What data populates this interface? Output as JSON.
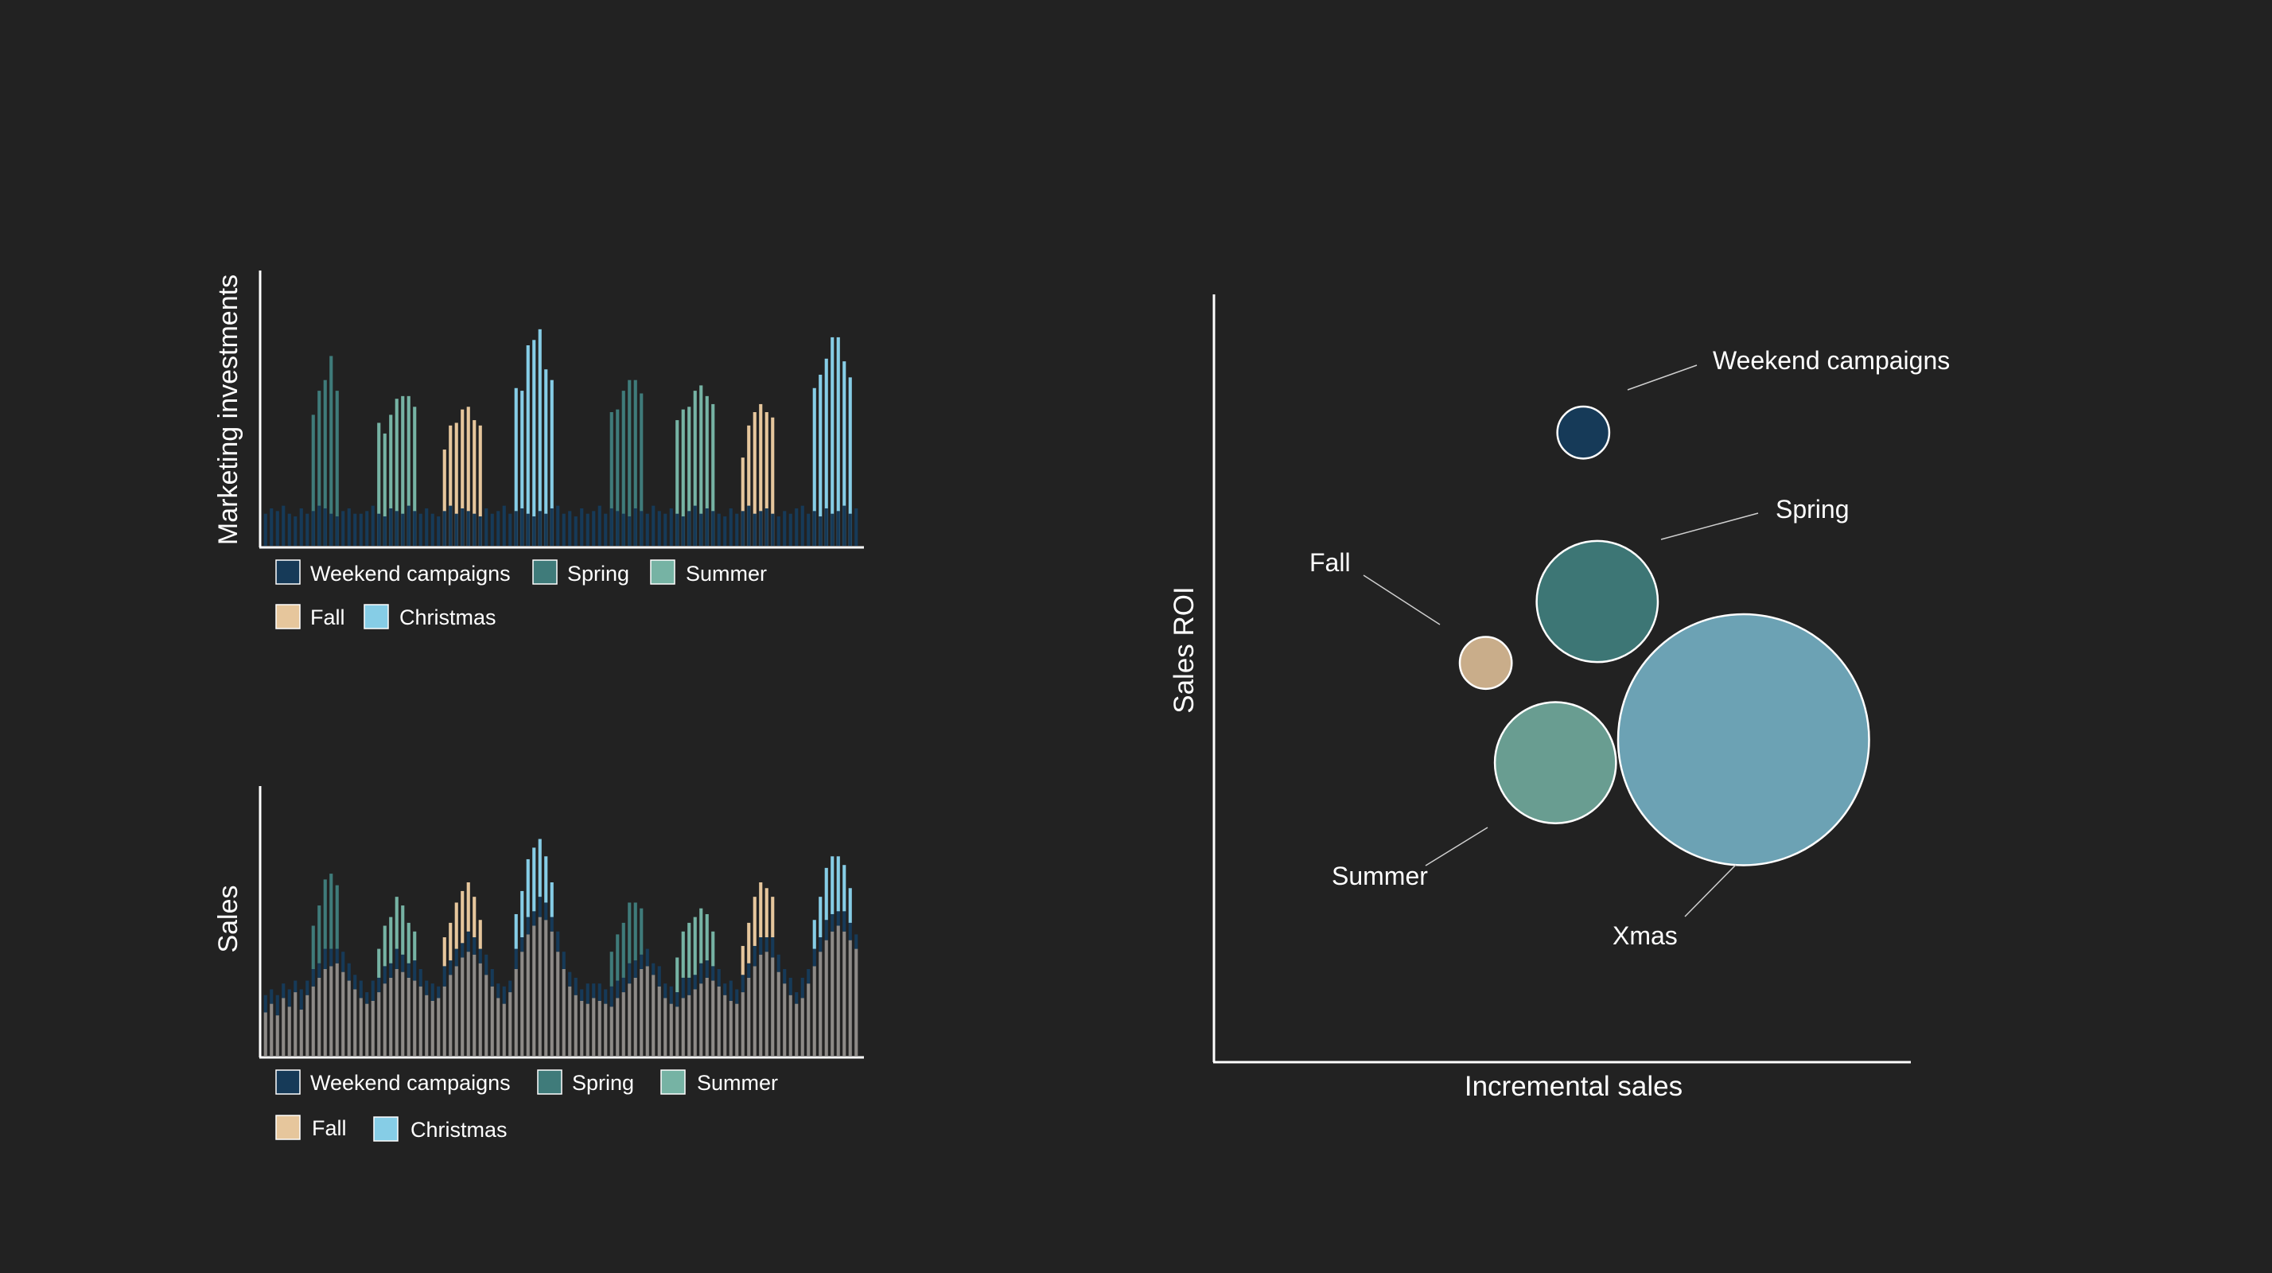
{
  "colors": {
    "background": "#222222",
    "weekend": "#163a58",
    "spring": "#3f7b7a",
    "summer": "#76b3a4",
    "fall": "#e6c69c",
    "christmas": "#86cde6",
    "gray": "#8d8a87",
    "axis": "#ffffff"
  },
  "legend_labels": {
    "weekend": "Weekend campaigns",
    "spring": "Spring",
    "summer": "Summer",
    "fall": "Fall",
    "christmas": "Christmas"
  },
  "chart_data": [
    {
      "type": "bar",
      "ylabel": "Marketing investments",
      "xlabel": "",
      "legend": [
        "Weekend campaigns",
        "Spring",
        "Summer",
        "Fall",
        "Christmas"
      ],
      "legend_placement": "bottom",
      "bar_count": 100,
      "weekend_values": [
        0.12,
        0.14,
        0.13,
        0.15,
        0.12,
        0.11,
        0.14,
        0.12,
        0.13,
        0.15,
        0.14,
        0.12,
        0.11,
        0.13,
        0.14,
        0.12,
        0.12,
        0.13,
        0.15,
        0.12,
        0.11,
        0.14,
        0.13,
        0.12,
        0.15,
        0.13,
        0.12,
        0.14,
        0.12,
        0.11,
        0.13,
        0.15,
        0.12,
        0.14,
        0.13,
        0.12,
        0.11,
        0.14,
        0.12,
        0.13,
        0.15,
        0.12,
        0.13,
        0.14,
        0.12,
        0.11,
        0.13,
        0.12,
        0.14,
        0.15,
        0.12,
        0.13,
        0.11,
        0.14,
        0.12,
        0.13,
        0.15,
        0.12,
        0.14,
        0.13,
        0.12,
        0.11,
        0.14,
        0.13,
        0.12,
        0.15,
        0.13,
        0.12,
        0.14,
        0.12,
        0.11,
        0.13,
        0.15,
        0.12,
        0.14,
        0.13,
        0.12,
        0.11,
        0.14,
        0.12,
        0.13,
        0.15,
        0.12,
        0.13,
        0.14,
        0.12,
        0.11,
        0.13,
        0.12,
        0.14,
        0.15,
        0.12,
        0.13,
        0.11,
        0.14,
        0.12,
        0.13,
        0.15,
        0.12,
        0.14
      ],
      "campaigns": [
        {
          "series": "Spring",
          "start": 8,
          "values": [
            0.49,
            0.58,
            0.62,
            0.71,
            0.58
          ]
        },
        {
          "series": "Summer",
          "start": 19,
          "values": [
            0.46,
            0.42,
            0.49,
            0.55,
            0.56,
            0.56,
            0.52
          ]
        },
        {
          "series": "Fall",
          "start": 30,
          "values": [
            0.36,
            0.45,
            0.46,
            0.51,
            0.52,
            0.47,
            0.45
          ]
        },
        {
          "series": "Christmas",
          "start": 42,
          "values": [
            0.59,
            0.58,
            0.75,
            0.77,
            0.81,
            0.66,
            0.62
          ]
        },
        {
          "series": "Spring",
          "start": 58,
          "values": [
            0.5,
            0.51,
            0.58,
            0.62,
            0.62,
            0.57
          ]
        },
        {
          "series": "Summer",
          "start": 69,
          "values": [
            0.47,
            0.51,
            0.52,
            0.58,
            0.6,
            0.56,
            0.53
          ]
        },
        {
          "series": "Fall",
          "start": 80,
          "values": [
            0.33,
            0.45,
            0.5,
            0.53,
            0.5,
            0.48
          ]
        },
        {
          "series": "Christmas",
          "start": 92,
          "values": [
            0.59,
            0.64,
            0.7,
            0.78,
            0.78,
            0.69,
            0.63
          ]
        }
      ]
    },
    {
      "type": "bar",
      "ylabel": "Sales",
      "xlabel": "",
      "legend": [
        "Weekend campaigns",
        "Spring",
        "Summer",
        "Fall",
        "Christmas"
      ],
      "legend_placement": "bottom",
      "bar_count": 100,
      "base_values": [
        0.15,
        0.18,
        0.14,
        0.2,
        0.17,
        0.22,
        0.16,
        0.21,
        0.24,
        0.27,
        0.3,
        0.31,
        0.32,
        0.29,
        0.26,
        0.23,
        0.2,
        0.18,
        0.19,
        0.22,
        0.25,
        0.27,
        0.3,
        0.29,
        0.27,
        0.26,
        0.24,
        0.21,
        0.19,
        0.2,
        0.24,
        0.28,
        0.31,
        0.34,
        0.36,
        0.35,
        0.32,
        0.28,
        0.24,
        0.2,
        0.18,
        0.22,
        0.3,
        0.36,
        0.42,
        0.45,
        0.48,
        0.47,
        0.43,
        0.36,
        0.3,
        0.24,
        0.21,
        0.19,
        0.18,
        0.2,
        0.19,
        0.18,
        0.17,
        0.2,
        0.22,
        0.25,
        0.27,
        0.3,
        0.31,
        0.28,
        0.24,
        0.2,
        0.18,
        0.17,
        0.2,
        0.21,
        0.23,
        0.25,
        0.27,
        0.26,
        0.24,
        0.21,
        0.19,
        0.18,
        0.22,
        0.27,
        0.31,
        0.35,
        0.36,
        0.34,
        0.29,
        0.25,
        0.21,
        0.18,
        0.2,
        0.25,
        0.31,
        0.36,
        0.4,
        0.43,
        0.45,
        0.43,
        0.4,
        0.37
      ],
      "weekend_values": [
        0.06,
        0.05,
        0.07,
        0.05,
        0.06,
        0.04,
        0.07,
        0.05,
        0.06,
        0.05,
        0.07,
        0.06,
        0.05,
        0.07,
        0.06,
        0.05,
        0.06,
        0.04,
        0.07,
        0.05,
        0.06,
        0.05,
        0.07,
        0.06,
        0.05,
        0.07,
        0.06,
        0.05,
        0.06,
        0.04,
        0.07,
        0.05,
        0.06,
        0.05,
        0.07,
        0.06,
        0.05,
        0.07,
        0.06,
        0.05,
        0.06,
        0.04,
        0.07,
        0.05,
        0.06,
        0.05,
        0.07,
        0.06,
        0.05,
        0.07,
        0.06,
        0.05,
        0.06,
        0.04,
        0.07,
        0.05,
        0.06,
        0.05,
        0.07,
        0.06,
        0.05,
        0.07,
        0.06,
        0.05,
        0.06,
        0.04,
        0.07,
        0.05,
        0.06,
        0.05,
        0.07,
        0.06,
        0.05,
        0.07,
        0.06,
        0.05,
        0.06,
        0.04,
        0.07,
        0.05,
        0.06,
        0.05,
        0.07,
        0.06,
        0.05,
        0.07,
        0.06,
        0.05,
        0.06,
        0.04,
        0.07,
        0.05,
        0.06,
        0.05,
        0.07,
        0.06,
        0.05,
        0.07,
        0.06,
        0.05
      ],
      "campaigns": [
        {
          "series": "Spring",
          "start": 8,
          "values": [
            0.15,
            0.2,
            0.24,
            0.26,
            0.22
          ]
        },
        {
          "series": "Summer",
          "start": 19,
          "values": [
            0.1,
            0.14,
            0.16,
            0.18,
            0.17,
            0.14,
            0.1
          ]
        },
        {
          "series": "Fall",
          "start": 30,
          "values": [
            0.1,
            0.13,
            0.16,
            0.18,
            0.17,
            0.14,
            0.1
          ]
        },
        {
          "series": "Christmas",
          "start": 42,
          "values": [
            0.12,
            0.16,
            0.2,
            0.22,
            0.2,
            0.16,
            0.12
          ]
        },
        {
          "series": "Spring",
          "start": 58,
          "values": [
            0.12,
            0.16,
            0.19,
            0.21,
            0.2,
            0.16
          ]
        },
        {
          "series": "Summer",
          "start": 69,
          "values": [
            0.12,
            0.16,
            0.19,
            0.2,
            0.19,
            0.16,
            0.12
          ]
        },
        {
          "series": "Fall",
          "start": 80,
          "values": [
            0.1,
            0.14,
            0.17,
            0.19,
            0.17,
            0.14
          ]
        },
        {
          "series": "Christmas",
          "start": 92,
          "values": [
            0.1,
            0.14,
            0.18,
            0.2,
            0.19,
            0.16,
            0.12
          ]
        }
      ]
    },
    {
      "type": "scatter",
      "subtype": "bubble",
      "xlabel": "Incremental sales",
      "ylabel": "Sales ROI",
      "xlim": [
        0,
        1
      ],
      "ylim": [
        0,
        1
      ],
      "points": [
        {
          "label": "Weekend campaigns",
          "x": 0.53,
          "y": 0.82,
          "size": 0.06,
          "color": "#163a58"
        },
        {
          "label": "Spring",
          "x": 0.55,
          "y": 0.6,
          "size": 0.14,
          "color": "#3f7b7a"
        },
        {
          "label": "Fall",
          "x": 0.39,
          "y": 0.52,
          "size": 0.06,
          "color": "#e6c69c"
        },
        {
          "label": "Summer",
          "x": 0.49,
          "y": 0.39,
          "size": 0.14,
          "color": "#76b3a4"
        },
        {
          "label": "Xmas",
          "x": 0.76,
          "y": 0.42,
          "size": 0.29,
          "color": "#86cde6"
        }
      ]
    }
  ]
}
